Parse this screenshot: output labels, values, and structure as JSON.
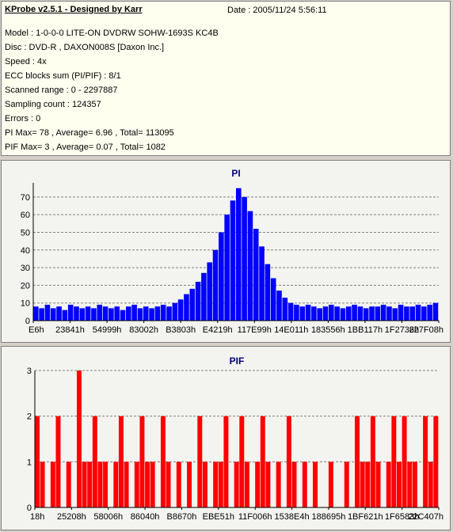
{
  "header": {
    "title": "KProbe v2.5.1 - Designed by Karr",
    "date": "Date : 2005/11/24 5:56:11"
  },
  "info": [
    "Model : 1-0-0-0 LITE-ON DVDRW SOHW-1693S KC4B",
    "Disc : DVD-R , DAXON008S [Daxon Inc.]",
    "Speed : 4x",
    "ECC blocks sum (PI/PIF) : 8/1",
    "Scanned range : 0 - 2297887",
    "Sampling count : 124357",
    "Errors : 0",
    "PI Max= 78 , Average= 6.96 , Total= 113095",
    "PIF Max= 3 , Average= 0.07 , Total= 1082"
  ],
  "colors": {
    "pi": "#0000ff",
    "pif": "#ff0000",
    "title": "#000080",
    "grid": "#808080"
  },
  "chart_data": [
    {
      "type": "bar",
      "title": "PI",
      "xlabel": "",
      "ylabel": "",
      "ylim": [
        0,
        78
      ],
      "y_ticks": [
        "0",
        "10",
        "20",
        "30",
        "40",
        "50",
        "60",
        "70"
      ],
      "x_tick_labels": [
        "E6h",
        "23841h",
        "54999h",
        "83002h",
        "B3803h",
        "E4219h",
        "117E99h",
        "14E011h",
        "183556h",
        "1BB117h",
        "1F2736h",
        "227F08h"
      ],
      "grid": "horizontal dashed",
      "series": [
        {
          "values_sampled": [
            8,
            7,
            9,
            7,
            8,
            6,
            9,
            8,
            7,
            8,
            7,
            9,
            8,
            7,
            8,
            6,
            8,
            9,
            7,
            8,
            7,
            8,
            9,
            8,
            10,
            12,
            15,
            18,
            22,
            27,
            33,
            40,
            50,
            60,
            68,
            75,
            70,
            62,
            52,
            42,
            32,
            24,
            17,
            13,
            10,
            9,
            8,
            9,
            8,
            7,
            8,
            9,
            8,
            7,
            8,
            9,
            8,
            7,
            8,
            8,
            9,
            8,
            7,
            9,
            8,
            8,
            9,
            8,
            9,
            10
          ]
        }
      ]
    },
    {
      "type": "bar",
      "title": "PIF",
      "xlabel": "",
      "ylabel": "",
      "ylim": [
        0,
        3
      ],
      "y_ticks": [
        "0",
        "1",
        "2",
        "3"
      ],
      "x_tick_labels": [
        "18h",
        "25208h",
        "58006h",
        "86040h",
        "B8670h",
        "EBE51h",
        "11F006h",
        "1538E4h",
        "188695h",
        "1BF621h",
        "1F6583h",
        "22C407h"
      ],
      "grid": "horizontal dashed",
      "series": [
        {
          "max": 3,
          "values_sampled": [
            2,
            1,
            0,
            1,
            2,
            0,
            1,
            0,
            3,
            1,
            1,
            2,
            1,
            1,
            0,
            1,
            2,
            1,
            0,
            1,
            2,
            1,
            1,
            0,
            2,
            1,
            0,
            1,
            0,
            1,
            0,
            2,
            1,
            0,
            1,
            1,
            2,
            0,
            1,
            2,
            1,
            0,
            1,
            2,
            1,
            0,
            1,
            0,
            2,
            1,
            0,
            1,
            0,
            1,
            0,
            0,
            1,
            0,
            0,
            1,
            0,
            2,
            1,
            1,
            2,
            1,
            0,
            1,
            2,
            1,
            2,
            1,
            1,
            0,
            2,
            1,
            2
          ]
        }
      ]
    }
  ]
}
